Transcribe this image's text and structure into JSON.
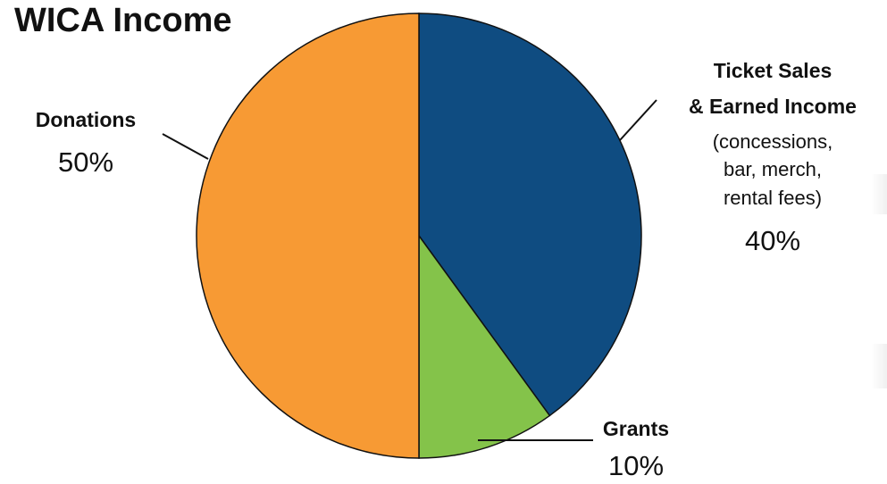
{
  "chart_data": {
    "type": "pie",
    "title": "WICA Income",
    "slices": [
      {
        "name": "Ticket Sales",
        "name_line2": "& Earned Income",
        "note": [
          "(concessions,",
          "bar, merch,",
          "rental fees)"
        ],
        "value": 40,
        "value_label": "40%",
        "color": "#0f4c81"
      },
      {
        "name": "Grants",
        "value": 10,
        "value_label": "10%",
        "color": "#84c34a"
      },
      {
        "name": "Donations",
        "value": 50,
        "value_label": "50%",
        "color": "#f79a34"
      }
    ],
    "start": "top",
    "direction": "clockwise"
  }
}
